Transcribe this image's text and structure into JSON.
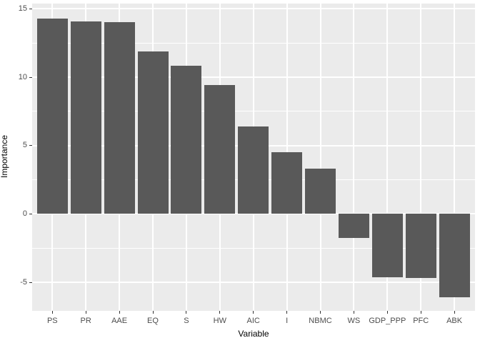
{
  "chart_data": {
    "type": "bar",
    "title": "",
    "xlabel": "Variable",
    "ylabel": "Importance",
    "categories": [
      "PS",
      "PR",
      "AAE",
      "EQ",
      "S",
      "HW",
      "AIC",
      "I",
      "NBMC",
      "WS",
      "GDP_PPP",
      "PFC",
      "ABK"
    ],
    "values": [
      14.3,
      14.1,
      14.0,
      11.9,
      10.85,
      9.4,
      6.4,
      4.5,
      3.3,
      -1.75,
      -4.65,
      -4.7,
      -6.1
    ],
    "y_major_ticks": [
      -5,
      0,
      5,
      10,
      15
    ],
    "y_major_tick_labels": [
      "-5",
      "0",
      "5",
      "10",
      "15"
    ],
    "y_minor_ticks": [
      -2.5,
      2.5,
      7.5,
      12.5
    ],
    "ylim": [
      -7.08,
      15.38
    ],
    "grid": "major-and-minor, white on grey panel",
    "legend_position": "none",
    "colors": {
      "bar_fill": "#595959",
      "panel_background": "#EBEBEB",
      "gridline": "#FFFFFF",
      "tick_text": "#4D4D4D",
      "axis_title_text": "#000000",
      "tick_mark": "#333333",
      "figure_background": "#FFFFFF"
    }
  }
}
